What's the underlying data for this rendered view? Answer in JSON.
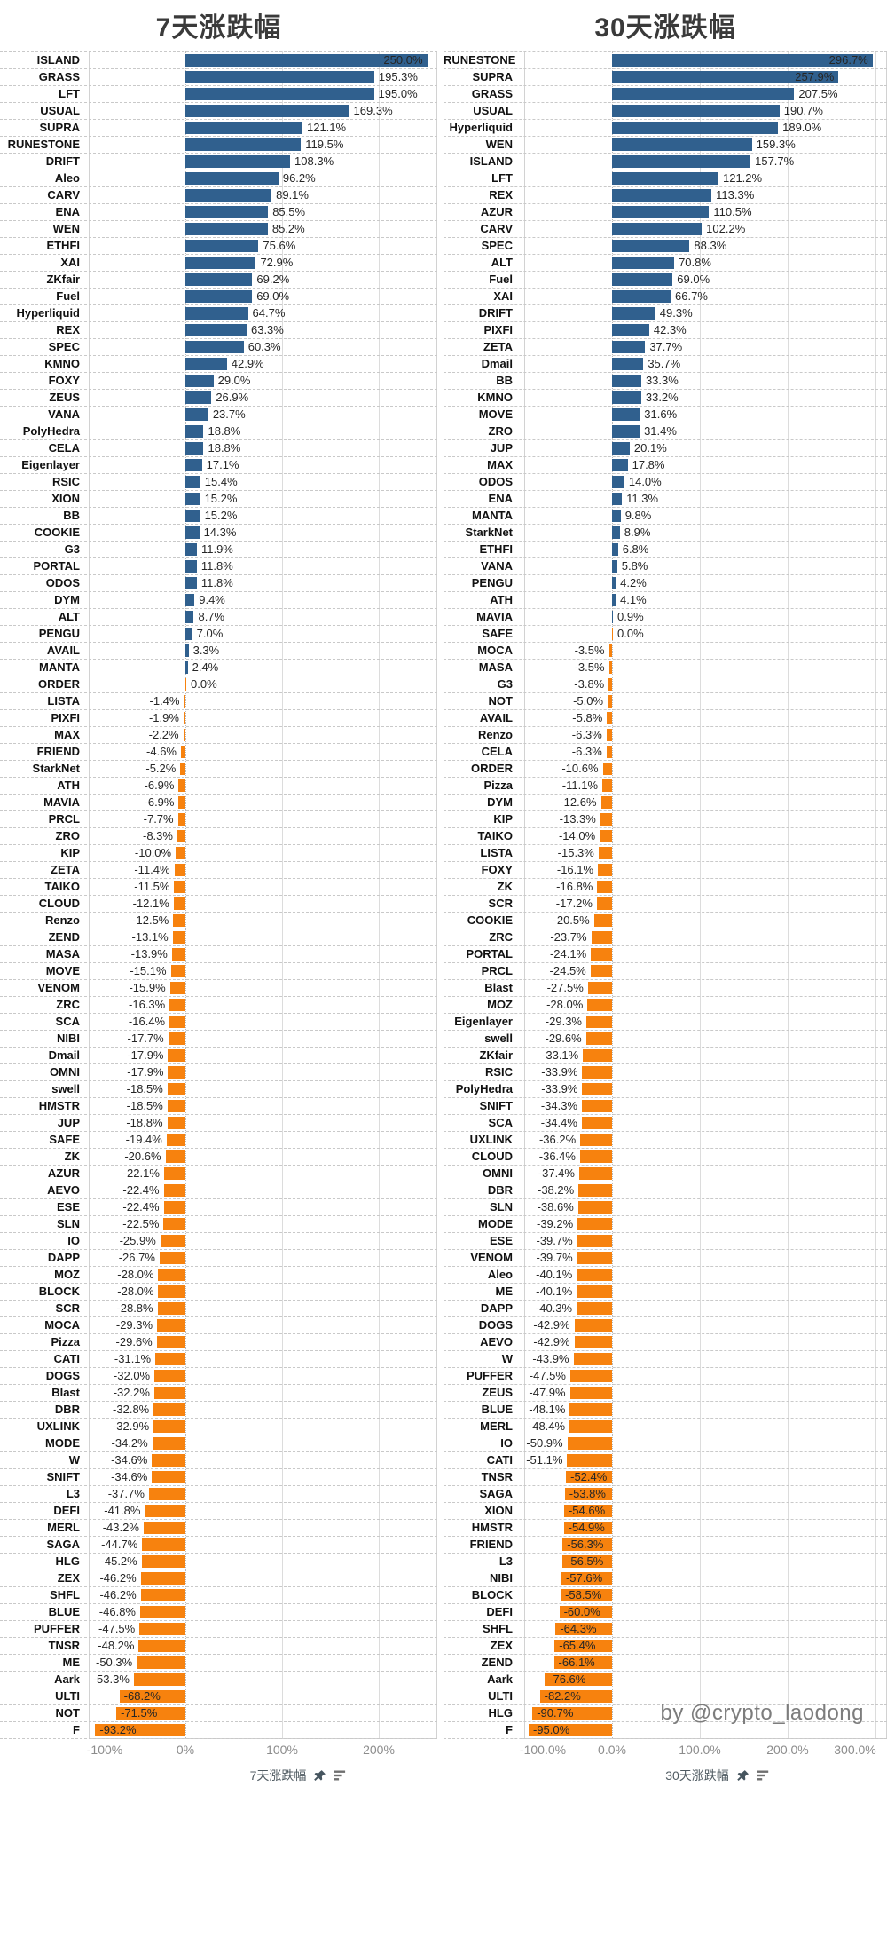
{
  "byline": {
    "text": "by @crypto_laodong"
  },
  "icons": {
    "pin": "pushpin-icon",
    "sort": "sort-descending-icon"
  },
  "chart_data": [
    {
      "type": "bar",
      "orientation": "horizontal",
      "title": "7天涨跌幅",
      "xlabel": "7天涨跌幅",
      "unit": "%",
      "xlim": [
        -105,
        260
      ],
      "grid": "dashed-row-separators-and-vertical-tick-lines",
      "legend": "none",
      "value_label_format": "0.0%",
      "colors": {
        "positive_bar": "#30608e",
        "negative_bar": "#f7820e"
      },
      "ticks": [
        {
          "value": -100,
          "label": "-100%"
        },
        {
          "value": 0,
          "label": "0%"
        },
        {
          "value": 100,
          "label": "100%"
        },
        {
          "value": 200,
          "label": "200%"
        }
      ],
      "rows": [
        [
          "ISLAND",
          250.0
        ],
        [
          "GRASS",
          195.3
        ],
        [
          "LFT",
          195.0
        ],
        [
          "USUAL",
          169.3
        ],
        [
          "SUPRA",
          121.1
        ],
        [
          "RUNESTONE",
          119.5
        ],
        [
          "DRIFT",
          108.3
        ],
        [
          "Aleo",
          96.2
        ],
        [
          "CARV",
          89.1
        ],
        [
          "ENA",
          85.5
        ],
        [
          "WEN",
          85.2
        ],
        [
          "ETHFI",
          75.6
        ],
        [
          "XAI",
          72.9
        ],
        [
          "ZKfair",
          69.2
        ],
        [
          "Fuel",
          69.0
        ],
        [
          "Hyperliquid",
          64.7
        ],
        [
          "REX",
          63.3
        ],
        [
          "SPEC",
          60.3
        ],
        [
          "KMNO",
          42.9
        ],
        [
          "FOXY",
          29.0
        ],
        [
          "ZEUS",
          26.9
        ],
        [
          "VANA",
          23.7
        ],
        [
          "PolyHedra",
          18.8
        ],
        [
          "CELA",
          18.8
        ],
        [
          "Eigenlayer",
          17.1
        ],
        [
          "RSIC",
          15.4
        ],
        [
          "XION",
          15.2
        ],
        [
          "BB",
          15.2
        ],
        [
          "COOKIE",
          14.3
        ],
        [
          "G3",
          11.9
        ],
        [
          "PORTAL",
          11.8
        ],
        [
          "ODOS",
          11.8
        ],
        [
          "DYM",
          9.4
        ],
        [
          "ALT",
          8.7
        ],
        [
          "PENGU",
          7.0
        ],
        [
          "AVAIL",
          3.3
        ],
        [
          "MANTA",
          2.4
        ],
        [
          "ORDER",
          0.0
        ],
        [
          "LISTA",
          -1.4
        ],
        [
          "PIXFI",
          -1.9
        ],
        [
          "MAX",
          -2.2
        ],
        [
          "FRIEND",
          -4.6
        ],
        [
          "StarkNet",
          -5.2
        ],
        [
          "ATH",
          -6.9
        ],
        [
          "MAVIA",
          -6.9
        ],
        [
          "PRCL",
          -7.7
        ],
        [
          "ZRO",
          -8.3
        ],
        [
          "KIP",
          -10.0
        ],
        [
          "ZETA",
          -11.4
        ],
        [
          "TAIKO",
          -11.5
        ],
        [
          "CLOUD",
          -12.1
        ],
        [
          "Renzo",
          -12.5
        ],
        [
          "ZEND",
          -13.1
        ],
        [
          "MASA",
          -13.9
        ],
        [
          "MOVE",
          -15.1
        ],
        [
          "VENOM",
          -15.9
        ],
        [
          "ZRC",
          -16.3
        ],
        [
          "SCA",
          -16.4
        ],
        [
          "NIBI",
          -17.7
        ],
        [
          "Dmail",
          -17.9
        ],
        [
          "OMNI",
          -17.9
        ],
        [
          "swell",
          -18.5
        ],
        [
          "HMSTR",
          -18.5
        ],
        [
          "JUP",
          -18.8
        ],
        [
          "SAFE",
          -19.4
        ],
        [
          "ZK",
          -20.6
        ],
        [
          "AZUR",
          -22.1
        ],
        [
          "AEVO",
          -22.4
        ],
        [
          "ESE",
          -22.4
        ],
        [
          "SLN",
          -22.5
        ],
        [
          "IO",
          -25.9
        ],
        [
          "DAPP",
          -26.7
        ],
        [
          "MOZ",
          -28.0
        ],
        [
          "BLOCK",
          -28.0
        ],
        [
          "SCR",
          -28.8
        ],
        [
          "MOCA",
          -29.3
        ],
        [
          "Pizza",
          -29.6
        ],
        [
          "CATI",
          -31.1
        ],
        [
          "DOGS",
          -32.0
        ],
        [
          "Blast",
          -32.2
        ],
        [
          "DBR",
          -32.8
        ],
        [
          "UXLINK",
          -32.9
        ],
        [
          "MODE",
          -34.2
        ],
        [
          "W",
          -34.6
        ],
        [
          "SNIFT",
          -34.6
        ],
        [
          "L3",
          -37.7
        ],
        [
          "DEFI",
          -41.8
        ],
        [
          "MERL",
          -43.2
        ],
        [
          "SAGA",
          -44.7
        ],
        [
          "HLG",
          -45.2
        ],
        [
          "ZEX",
          -46.2
        ],
        [
          "SHFL",
          -46.2
        ],
        [
          "BLUE",
          -46.8
        ],
        [
          "PUFFER",
          -47.5
        ],
        [
          "TNSR",
          -48.2
        ],
        [
          "ME",
          -50.3
        ],
        [
          "Aark",
          -53.3
        ],
        [
          "ULTI",
          -68.2
        ],
        [
          "NOT",
          -71.5
        ],
        [
          "F",
          -93.2
        ]
      ]
    },
    {
      "type": "bar",
      "orientation": "horizontal",
      "title": "30天涨跌幅",
      "xlabel": "30天涨跌幅",
      "unit": "%",
      "xlim": [
        -105,
        310
      ],
      "grid": "dashed-row-separators-and-vertical-tick-lines",
      "legend": "none",
      "value_label_format": "0.0%",
      "colors": {
        "positive_bar": "#30608e",
        "negative_bar": "#f7820e"
      },
      "ticks": [
        {
          "value": -100,
          "label": "-100.0%"
        },
        {
          "value": 0,
          "label": "0.0%"
        },
        {
          "value": 100,
          "label": "100.0%"
        },
        {
          "value": 200,
          "label": "200.0%"
        },
        {
          "value": 300,
          "label": "300.0%"
        }
      ],
      "rows": [
        [
          "RUNESTONE",
          296.7
        ],
        [
          "SUPRA",
          257.9
        ],
        [
          "GRASS",
          207.5
        ],
        [
          "USUAL",
          190.7
        ],
        [
          "Hyperliquid",
          189.0
        ],
        [
          "WEN",
          159.3
        ],
        [
          "ISLAND",
          157.7
        ],
        [
          "LFT",
          121.2
        ],
        [
          "REX",
          113.3
        ],
        [
          "AZUR",
          110.5
        ],
        [
          "CARV",
          102.2
        ],
        [
          "SPEC",
          88.3
        ],
        [
          "ALT",
          70.8
        ],
        [
          "Fuel",
          69.0
        ],
        [
          "XAI",
          66.7
        ],
        [
          "DRIFT",
          49.3
        ],
        [
          "PIXFI",
          42.3
        ],
        [
          "ZETA",
          37.7
        ],
        [
          "Dmail",
          35.7
        ],
        [
          "BB",
          33.3
        ],
        [
          "KMNO",
          33.2
        ],
        [
          "MOVE",
          31.6
        ],
        [
          "ZRO",
          31.4
        ],
        [
          "JUP",
          20.1
        ],
        [
          "MAX",
          17.8
        ],
        [
          "ODOS",
          14.0
        ],
        [
          "ENA",
          11.3
        ],
        [
          "MANTA",
          9.8
        ],
        [
          "StarkNet",
          8.9
        ],
        [
          "ETHFI",
          6.8
        ],
        [
          "VANA",
          5.8
        ],
        [
          "PENGU",
          4.2
        ],
        [
          "ATH",
          4.1
        ],
        [
          "MAVIA",
          0.9
        ],
        [
          "SAFE",
          0.0
        ],
        [
          "MOCA",
          -3.5
        ],
        [
          "MASA",
          -3.5
        ],
        [
          "G3",
          -3.8
        ],
        [
          "NOT",
          -5.0
        ],
        [
          "AVAIL",
          -5.8
        ],
        [
          "Renzo",
          -6.3
        ],
        [
          "CELA",
          -6.3
        ],
        [
          "ORDER",
          -10.6
        ],
        [
          "Pizza",
          -11.1
        ],
        [
          "DYM",
          -12.6
        ],
        [
          "KIP",
          -13.3
        ],
        [
          "TAIKO",
          -14.0
        ],
        [
          "LISTA",
          -15.3
        ],
        [
          "FOXY",
          -16.1
        ],
        [
          "ZK",
          -16.8
        ],
        [
          "SCR",
          -17.2
        ],
        [
          "COOKIE",
          -20.5
        ],
        [
          "ZRC",
          -23.7
        ],
        [
          "PORTAL",
          -24.1
        ],
        [
          "PRCL",
          -24.5
        ],
        [
          "Blast",
          -27.5
        ],
        [
          "MOZ",
          -28.0
        ],
        [
          "Eigenlayer",
          -29.3
        ],
        [
          "swell",
          -29.6
        ],
        [
          "ZKfair",
          -33.1
        ],
        [
          "RSIC",
          -33.9
        ],
        [
          "PolyHedra",
          -33.9
        ],
        [
          "SNIFT",
          -34.3
        ],
        [
          "SCA",
          -34.4
        ],
        [
          "UXLINK",
          -36.2
        ],
        [
          "CLOUD",
          -36.4
        ],
        [
          "OMNI",
          -37.4
        ],
        [
          "DBR",
          -38.2
        ],
        [
          "SLN",
          -38.6
        ],
        [
          "MODE",
          -39.2
        ],
        [
          "ESE",
          -39.7
        ],
        [
          "VENOM",
          -39.7
        ],
        [
          "Aleo",
          -40.1
        ],
        [
          "ME",
          -40.1
        ],
        [
          "DAPP",
          -40.3
        ],
        [
          "DOGS",
          -42.9
        ],
        [
          "AEVO",
          -42.9
        ],
        [
          "W",
          -43.9
        ],
        [
          "PUFFER",
          -47.5
        ],
        [
          "ZEUS",
          -47.9
        ],
        [
          "BLUE",
          -48.1
        ],
        [
          "MERL",
          -48.4
        ],
        [
          "IO",
          -50.9
        ],
        [
          "CATI",
          -51.1
        ],
        [
          "TNSR",
          -52.4
        ],
        [
          "SAGA",
          -53.8
        ],
        [
          "XION",
          -54.6
        ],
        [
          "HMSTR",
          -54.9
        ],
        [
          "FRIEND",
          -56.3
        ],
        [
          "L3",
          -56.5
        ],
        [
          "NIBI",
          -57.6
        ],
        [
          "BLOCK",
          -58.5
        ],
        [
          "DEFI",
          -60.0
        ],
        [
          "SHFL",
          -64.3
        ],
        [
          "ZEX",
          -65.4
        ],
        [
          "ZEND",
          -66.1
        ],
        [
          "Aark",
          -76.6
        ],
        [
          "ULTI",
          -82.2
        ],
        [
          "HLG",
          -90.7
        ],
        [
          "F",
          -95.0
        ]
      ]
    }
  ]
}
